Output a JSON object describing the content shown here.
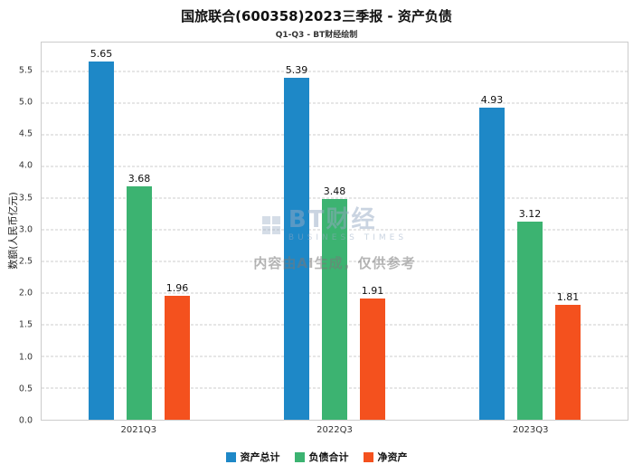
{
  "watermark": {
    "brand": "BT财经",
    "brand_sub": "BUSINESS TIMES",
    "disclaimer": "内容由AI生成，仅供参考"
  },
  "chart_data": {
    "type": "bar",
    "title": "国旅联合(600358)2023三季报 - 资产负债",
    "subtitle": "Q1-Q3 - BT财经绘制",
    "categories": [
      "2021Q3",
      "2022Q3",
      "2023Q3"
    ],
    "series": [
      {
        "name": "资产总计",
        "color": "#1e88c7",
        "values": [
          5.65,
          5.39,
          4.93
        ]
      },
      {
        "name": "负债合计",
        "color": "#3cb371",
        "values": [
          3.68,
          3.48,
          3.12
        ]
      },
      {
        "name": "净资产",
        "color": "#f4511e",
        "values": [
          1.96,
          1.91,
          1.81
        ]
      }
    ],
    "xlabel": "",
    "ylabel": "数额(人民币亿元)",
    "ylim": [
      0,
      5.95
    ],
    "yticks": [
      0.0,
      0.5,
      1.0,
      1.5,
      2.0,
      2.5,
      3.0,
      3.5,
      4.0,
      4.5,
      5.0,
      5.5
    ],
    "grid": "dashed-horizontal",
    "legend_position": "bottom"
  }
}
